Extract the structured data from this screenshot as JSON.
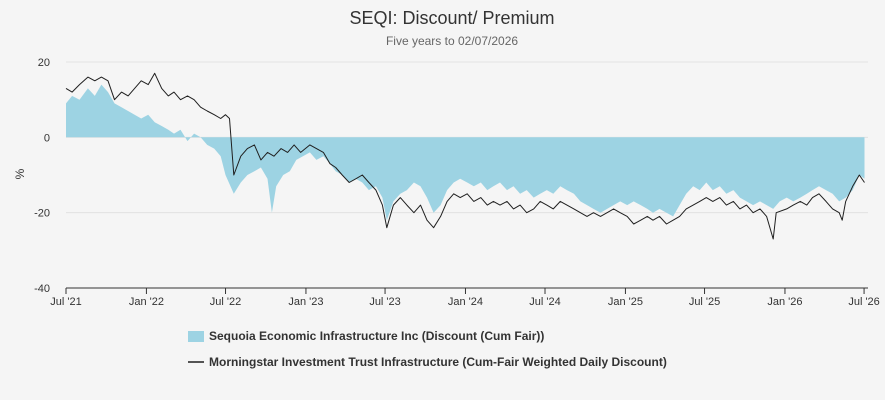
{
  "chart_data": {
    "type": "area",
    "title": "SEQI: Discount/ Premium",
    "subtitle": "Five years to 02/07/2026",
    "ylabel": "%",
    "xlabel": "",
    "ylim": [
      -40,
      20
    ],
    "yticks": [
      20,
      0,
      -20,
      -40
    ],
    "xlim": [
      "2021-07-01",
      "2026-07-10"
    ],
    "xticks": [
      {
        "label": "Jul '21",
        "date": "2021-07-01"
      },
      {
        "label": "Jan '22",
        "date": "2022-01-01"
      },
      {
        "label": "Jul '22",
        "date": "2022-07-01"
      },
      {
        "label": "Jan '23",
        "date": "2023-01-01"
      },
      {
        "label": "Jul '23",
        "date": "2023-07-01"
      },
      {
        "label": "Jan '24",
        "date": "2024-01-01"
      },
      {
        "label": "Jul '24",
        "date": "2024-07-01"
      },
      {
        "label": "Jan '25",
        "date": "2025-01-01"
      },
      {
        "label": "Jul '25",
        "date": "2025-07-01"
      },
      {
        "label": "Jan '26",
        "date": "2026-01-01"
      },
      {
        "label": "Jul '26",
        "date": "2026-07-01"
      }
    ],
    "grid": true,
    "legend_position": "bottom",
    "series": [
      {
        "name": "Sequoia Economic Infrastructure Inc (Discount (Cum Fair))",
        "kind": "area",
        "color": "#9dd3e3",
        "points": [
          [
            "2021-07-01",
            9
          ],
          [
            "2021-07-15",
            11
          ],
          [
            "2021-08-01",
            10
          ],
          [
            "2021-08-20",
            13
          ],
          [
            "2021-09-05",
            11
          ],
          [
            "2021-09-20",
            14
          ],
          [
            "2021-10-05",
            12
          ],
          [
            "2021-10-20",
            9
          ],
          [
            "2021-11-05",
            8
          ],
          [
            "2021-11-20",
            7
          ],
          [
            "2021-12-05",
            6
          ],
          [
            "2021-12-20",
            5
          ],
          [
            "2022-01-05",
            6
          ],
          [
            "2022-01-20",
            4
          ],
          [
            "2022-02-05",
            3
          ],
          [
            "2022-02-20",
            2
          ],
          [
            "2022-03-05",
            1
          ],
          [
            "2022-03-20",
            2
          ],
          [
            "2022-04-05",
            -1
          ],
          [
            "2022-04-20",
            1
          ],
          [
            "2022-05-05",
            0
          ],
          [
            "2022-05-20",
            -2
          ],
          [
            "2022-06-05",
            -3
          ],
          [
            "2022-06-20",
            -5
          ],
          [
            "2022-07-01",
            -10
          ],
          [
            "2022-07-20",
            -15
          ],
          [
            "2022-08-05",
            -12
          ],
          [
            "2022-08-20",
            -10
          ],
          [
            "2022-09-05",
            -9
          ],
          [
            "2022-09-20",
            -8
          ],
          [
            "2022-10-05",
            -11
          ],
          [
            "2022-10-15",
            -20
          ],
          [
            "2022-10-25",
            -13
          ],
          [
            "2022-11-10",
            -10
          ],
          [
            "2022-11-25",
            -9
          ],
          [
            "2022-12-10",
            -6
          ],
          [
            "2022-12-25",
            -5
          ],
          [
            "2023-01-10",
            -4
          ],
          [
            "2023-01-25",
            -6
          ],
          [
            "2023-02-10",
            -5
          ],
          [
            "2023-02-25",
            -7
          ],
          [
            "2023-03-10",
            -9
          ],
          [
            "2023-03-25",
            -10
          ],
          [
            "2023-04-10",
            -12
          ],
          [
            "2023-04-25",
            -11
          ],
          [
            "2023-05-10",
            -12
          ],
          [
            "2023-05-25",
            -14
          ],
          [
            "2023-06-10",
            -13
          ],
          [
            "2023-06-25",
            -16
          ],
          [
            "2023-07-05",
            -22
          ],
          [
            "2023-07-20",
            -17
          ],
          [
            "2023-08-05",
            -15
          ],
          [
            "2023-08-20",
            -14
          ],
          [
            "2023-09-05",
            -12
          ],
          [
            "2023-09-20",
            -13
          ],
          [
            "2023-10-05",
            -16
          ],
          [
            "2023-10-20",
            -20
          ],
          [
            "2023-11-05",
            -18
          ],
          [
            "2023-11-20",
            -14
          ],
          [
            "2023-12-05",
            -12
          ],
          [
            "2023-12-20",
            -11
          ],
          [
            "2024-01-05",
            -12
          ],
          [
            "2024-01-20",
            -13
          ],
          [
            "2024-02-05",
            -12
          ],
          [
            "2024-02-20",
            -14
          ],
          [
            "2024-03-05",
            -13
          ],
          [
            "2024-03-20",
            -12
          ],
          [
            "2024-04-05",
            -14
          ],
          [
            "2024-04-20",
            -13
          ],
          [
            "2024-05-05",
            -15
          ],
          [
            "2024-05-20",
            -14
          ],
          [
            "2024-06-05",
            -16
          ],
          [
            "2024-06-20",
            -15
          ],
          [
            "2024-07-05",
            -14
          ],
          [
            "2024-07-20",
            -15
          ],
          [
            "2024-08-05",
            -13
          ],
          [
            "2024-08-20",
            -14
          ],
          [
            "2024-09-05",
            -15
          ],
          [
            "2024-09-20",
            -17
          ],
          [
            "2024-10-05",
            -18
          ],
          [
            "2024-10-20",
            -19
          ],
          [
            "2024-11-05",
            -20
          ],
          [
            "2024-11-20",
            -19
          ],
          [
            "2024-12-05",
            -18
          ],
          [
            "2024-12-20",
            -17
          ],
          [
            "2025-01-05",
            -18
          ],
          [
            "2025-01-20",
            -17
          ],
          [
            "2025-02-05",
            -18
          ],
          [
            "2025-02-20",
            -19
          ],
          [
            "2025-03-05",
            -20
          ],
          [
            "2025-03-20",
            -19
          ],
          [
            "2025-04-05",
            -20
          ],
          [
            "2025-04-20",
            -21
          ],
          [
            "2025-05-05",
            -18
          ],
          [
            "2025-05-20",
            -15
          ],
          [
            "2025-06-05",
            -13
          ],
          [
            "2025-06-20",
            -14
          ],
          [
            "2025-07-05",
            -12
          ],
          [
            "2025-07-20",
            -14
          ],
          [
            "2025-08-05",
            -13
          ],
          [
            "2025-08-20",
            -15
          ],
          [
            "2025-09-05",
            -14
          ],
          [
            "2025-09-20",
            -16
          ],
          [
            "2025-10-05",
            -17
          ],
          [
            "2025-10-20",
            -18
          ],
          [
            "2025-11-05",
            -17
          ],
          [
            "2025-11-20",
            -18
          ],
          [
            "2025-12-05",
            -19
          ],
          [
            "2025-12-20",
            -17
          ],
          [
            "2026-01-05",
            -16
          ],
          [
            "2026-01-20",
            -17
          ],
          [
            "2026-02-05",
            -16
          ],
          [
            "2026-02-20",
            -15
          ],
          [
            "2026-03-05",
            -14
          ],
          [
            "2026-03-20",
            -13
          ],
          [
            "2026-04-05",
            -14
          ],
          [
            "2026-04-20",
            -15
          ],
          [
            "2026-05-05",
            -17
          ],
          [
            "2026-05-20",
            -16
          ],
          [
            "2026-06-05",
            -14
          ],
          [
            "2026-06-20",
            -10
          ],
          [
            "2026-07-02",
            -11
          ]
        ]
      },
      {
        "name": "Morningstar Investment Trust Infrastructure (Cum-Fair Weighted Daily Discount)",
        "kind": "line",
        "color": "#1f1f1f",
        "points": [
          [
            "2021-07-01",
            13
          ],
          [
            "2021-07-15",
            12
          ],
          [
            "2021-08-01",
            14
          ],
          [
            "2021-08-20",
            16
          ],
          [
            "2021-09-05",
            15
          ],
          [
            "2021-09-20",
            16
          ],
          [
            "2021-10-05",
            15
          ],
          [
            "2021-10-20",
            10
          ],
          [
            "2021-11-05",
            12
          ],
          [
            "2021-11-20",
            11
          ],
          [
            "2021-12-05",
            13
          ],
          [
            "2021-12-20",
            15
          ],
          [
            "2022-01-05",
            14
          ],
          [
            "2022-01-20",
            17
          ],
          [
            "2022-02-05",
            13
          ],
          [
            "2022-02-20",
            11
          ],
          [
            "2022-03-05",
            12
          ],
          [
            "2022-03-20",
            10
          ],
          [
            "2022-04-05",
            11
          ],
          [
            "2022-04-20",
            10
          ],
          [
            "2022-05-05",
            8
          ],
          [
            "2022-05-20",
            7
          ],
          [
            "2022-06-05",
            6
          ],
          [
            "2022-06-20",
            5
          ],
          [
            "2022-07-01",
            6
          ],
          [
            "2022-07-10",
            5
          ],
          [
            "2022-07-20",
            -10
          ],
          [
            "2022-08-05",
            -5
          ],
          [
            "2022-08-20",
            -3
          ],
          [
            "2022-09-05",
            -2
          ],
          [
            "2022-09-20",
            -6
          ],
          [
            "2022-10-05",
            -4
          ],
          [
            "2022-10-20",
            -5
          ],
          [
            "2022-11-05",
            -3
          ],
          [
            "2022-11-20",
            -4
          ],
          [
            "2022-12-05",
            -2
          ],
          [
            "2022-12-20",
            -4
          ],
          [
            "2023-01-10",
            -2
          ],
          [
            "2023-01-25",
            -3
          ],
          [
            "2023-02-10",
            -4
          ],
          [
            "2023-02-25",
            -7
          ],
          [
            "2023-03-10",
            -8
          ],
          [
            "2023-03-25",
            -10
          ],
          [
            "2023-04-10",
            -12
          ],
          [
            "2023-04-25",
            -11
          ],
          [
            "2023-05-10",
            -10
          ],
          [
            "2023-05-25",
            -12
          ],
          [
            "2023-06-10",
            -14
          ],
          [
            "2023-06-25",
            -18
          ],
          [
            "2023-07-05",
            -24
          ],
          [
            "2023-07-20",
            -18
          ],
          [
            "2023-08-05",
            -16
          ],
          [
            "2023-08-20",
            -18
          ],
          [
            "2023-09-05",
            -20
          ],
          [
            "2023-09-20",
            -18
          ],
          [
            "2023-10-05",
            -22
          ],
          [
            "2023-10-20",
            -24
          ],
          [
            "2023-11-05",
            -21
          ],
          [
            "2023-11-20",
            -17
          ],
          [
            "2023-12-05",
            -15
          ],
          [
            "2023-12-20",
            -16
          ],
          [
            "2024-01-05",
            -15
          ],
          [
            "2024-01-20",
            -17
          ],
          [
            "2024-02-05",
            -16
          ],
          [
            "2024-02-20",
            -18
          ],
          [
            "2024-03-05",
            -17
          ],
          [
            "2024-03-20",
            -18
          ],
          [
            "2024-04-05",
            -17
          ],
          [
            "2024-04-20",
            -19
          ],
          [
            "2024-05-05",
            -18
          ],
          [
            "2024-05-20",
            -20
          ],
          [
            "2024-06-05",
            -19
          ],
          [
            "2024-06-20",
            -17
          ],
          [
            "2024-07-05",
            -18
          ],
          [
            "2024-07-20",
            -19
          ],
          [
            "2024-08-05",
            -17
          ],
          [
            "2024-08-20",
            -18
          ],
          [
            "2024-09-05",
            -19
          ],
          [
            "2024-09-20",
            -20
          ],
          [
            "2024-10-05",
            -21
          ],
          [
            "2024-10-20",
            -20
          ],
          [
            "2024-11-05",
            -21
          ],
          [
            "2024-11-20",
            -20
          ],
          [
            "2024-12-05",
            -19
          ],
          [
            "2024-12-20",
            -20
          ],
          [
            "2025-01-05",
            -21
          ],
          [
            "2025-01-20",
            -23
          ],
          [
            "2025-02-05",
            -22
          ],
          [
            "2025-02-20",
            -21
          ],
          [
            "2025-03-05",
            -22
          ],
          [
            "2025-03-20",
            -21
          ],
          [
            "2025-04-05",
            -23
          ],
          [
            "2025-04-20",
            -22
          ],
          [
            "2025-05-05",
            -21
          ],
          [
            "2025-05-20",
            -19
          ],
          [
            "2025-06-05",
            -18
          ],
          [
            "2025-06-20",
            -17
          ],
          [
            "2025-07-05",
            -16
          ],
          [
            "2025-07-20",
            -17
          ],
          [
            "2025-08-05",
            -16
          ],
          [
            "2025-08-20",
            -18
          ],
          [
            "2025-09-05",
            -17
          ],
          [
            "2025-09-20",
            -19
          ],
          [
            "2025-10-05",
            -18
          ],
          [
            "2025-10-20",
            -20
          ],
          [
            "2025-11-05",
            -19
          ],
          [
            "2025-11-20",
            -21
          ],
          [
            "2025-12-05",
            -27
          ],
          [
            "2025-12-12",
            -20
          ],
          [
            "2026-01-05",
            -19
          ],
          [
            "2026-01-20",
            -18
          ],
          [
            "2026-02-05",
            -17
          ],
          [
            "2026-02-20",
            -18
          ],
          [
            "2026-03-05",
            -16
          ],
          [
            "2026-03-20",
            -15
          ],
          [
            "2026-04-05",
            -17
          ],
          [
            "2026-04-20",
            -19
          ],
          [
            "2026-05-05",
            -20
          ],
          [
            "2026-05-12",
            -22
          ],
          [
            "2026-05-20",
            -17
          ],
          [
            "2026-06-05",
            -13
          ],
          [
            "2026-06-20",
            -10
          ],
          [
            "2026-07-02",
            -12
          ]
        ]
      }
    ]
  }
}
